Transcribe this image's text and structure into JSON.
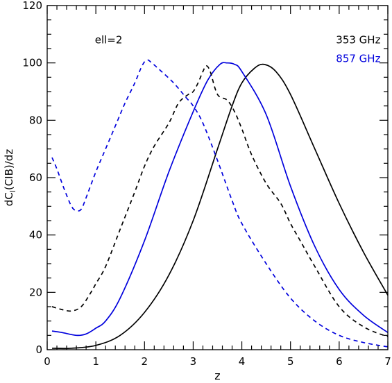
{
  "chart_data": {
    "type": "line",
    "xlabel": "z",
    "ylabel_main": "dC",
    "ylabel_sub": "l",
    "ylabel_rest": "(CIB)/dz",
    "xlim": [
      0,
      7
    ],
    "ylim": [
      0,
      120
    ],
    "xticks": [
      0,
      1,
      2,
      3,
      4,
      5,
      6,
      7
    ],
    "yticks": [
      0,
      20,
      40,
      60,
      80,
      100,
      120
    ],
    "annotation": "ell=2",
    "legend": [
      {
        "label": "353 GHz",
        "color": "#000000"
      },
      {
        "label": "857 GHz",
        "color": "#0000dd"
      }
    ],
    "series": [
      {
        "name": "353 GHz",
        "color": "#000000",
        "dash": "solid",
        "x": [
          0.1,
          0.5,
          1.0,
          1.5,
          2.0,
          2.5,
          3.0,
          3.5,
          3.8,
          4.0,
          4.25,
          4.45,
          4.7,
          5.0,
          5.5,
          6.0,
          6.5,
          7.0
        ],
        "y": [
          0.5,
          0.5,
          1.5,
          5,
          13,
          26,
          45,
          70,
          85,
          93,
          98,
          99.5,
          97,
          89,
          70,
          51,
          34,
          19
        ]
      },
      {
        "name": "857 GHz",
        "color": "#0000dd",
        "dash": "solid",
        "x": [
          0.1,
          0.3,
          0.6,
          0.8,
          1.0,
          1.2,
          1.5,
          2.0,
          2.5,
          3.0,
          3.3,
          3.55,
          3.7,
          3.85,
          4.0,
          4.5,
          5.0,
          5.5,
          6.0,
          6.5,
          7.0
        ],
        "y": [
          6.5,
          6,
          5,
          5.5,
          7.5,
          10,
          18,
          38,
          62,
          83,
          94,
          99.5,
          100,
          99.5,
          97,
          82,
          57,
          36,
          21,
          12,
          6
        ]
      },
      {
        "name": "353 GHz",
        "color": "#000000",
        "dash": "dashed",
        "x": [
          0.1,
          0.3,
          0.5,
          0.7,
          0.9,
          1.0,
          1.2,
          1.5,
          1.8,
          2.0,
          2.2,
          2.5,
          2.7,
          2.9,
          3.0,
          3.1,
          3.2,
          3.27,
          3.35,
          3.5,
          3.7,
          3.85,
          4.0,
          4.2,
          4.5,
          4.8,
          5.0,
          5.2,
          5.5,
          6.0,
          6.5,
          7.0
        ],
        "y": [
          15,
          14,
          13.5,
          15,
          20,
          23,
          29,
          42,
          55,
          64,
          71,
          79,
          86,
          89,
          90,
          93,
          97,
          99,
          97,
          89,
          87,
          83,
          77,
          68,
          58,
          51,
          44,
          38,
          29,
          15,
          8,
          4.5
        ]
      },
      {
        "name": "857 GHz",
        "color": "#0000dd",
        "dash": "dashed",
        "x": [
          0.1,
          0.2,
          0.35,
          0.5,
          0.6,
          0.7,
          0.8,
          1.0,
          1.2,
          1.4,
          1.6,
          1.8,
          1.95,
          2.05,
          2.15,
          2.35,
          2.6,
          2.85,
          3.0,
          3.2,
          3.5,
          3.8,
          4.0,
          4.5,
          5.0,
          5.5,
          6.0,
          6.5,
          7.0
        ],
        "y": [
          67,
          63,
          56,
          50,
          48.5,
          49,
          53,
          62,
          70,
          78,
          86,
          93,
          99,
          101,
          100,
          97,
          93,
          88,
          85,
          79,
          66,
          52,
          44,
          30,
          18,
          10,
          5,
          2.5,
          1
        ]
      }
    ]
  }
}
